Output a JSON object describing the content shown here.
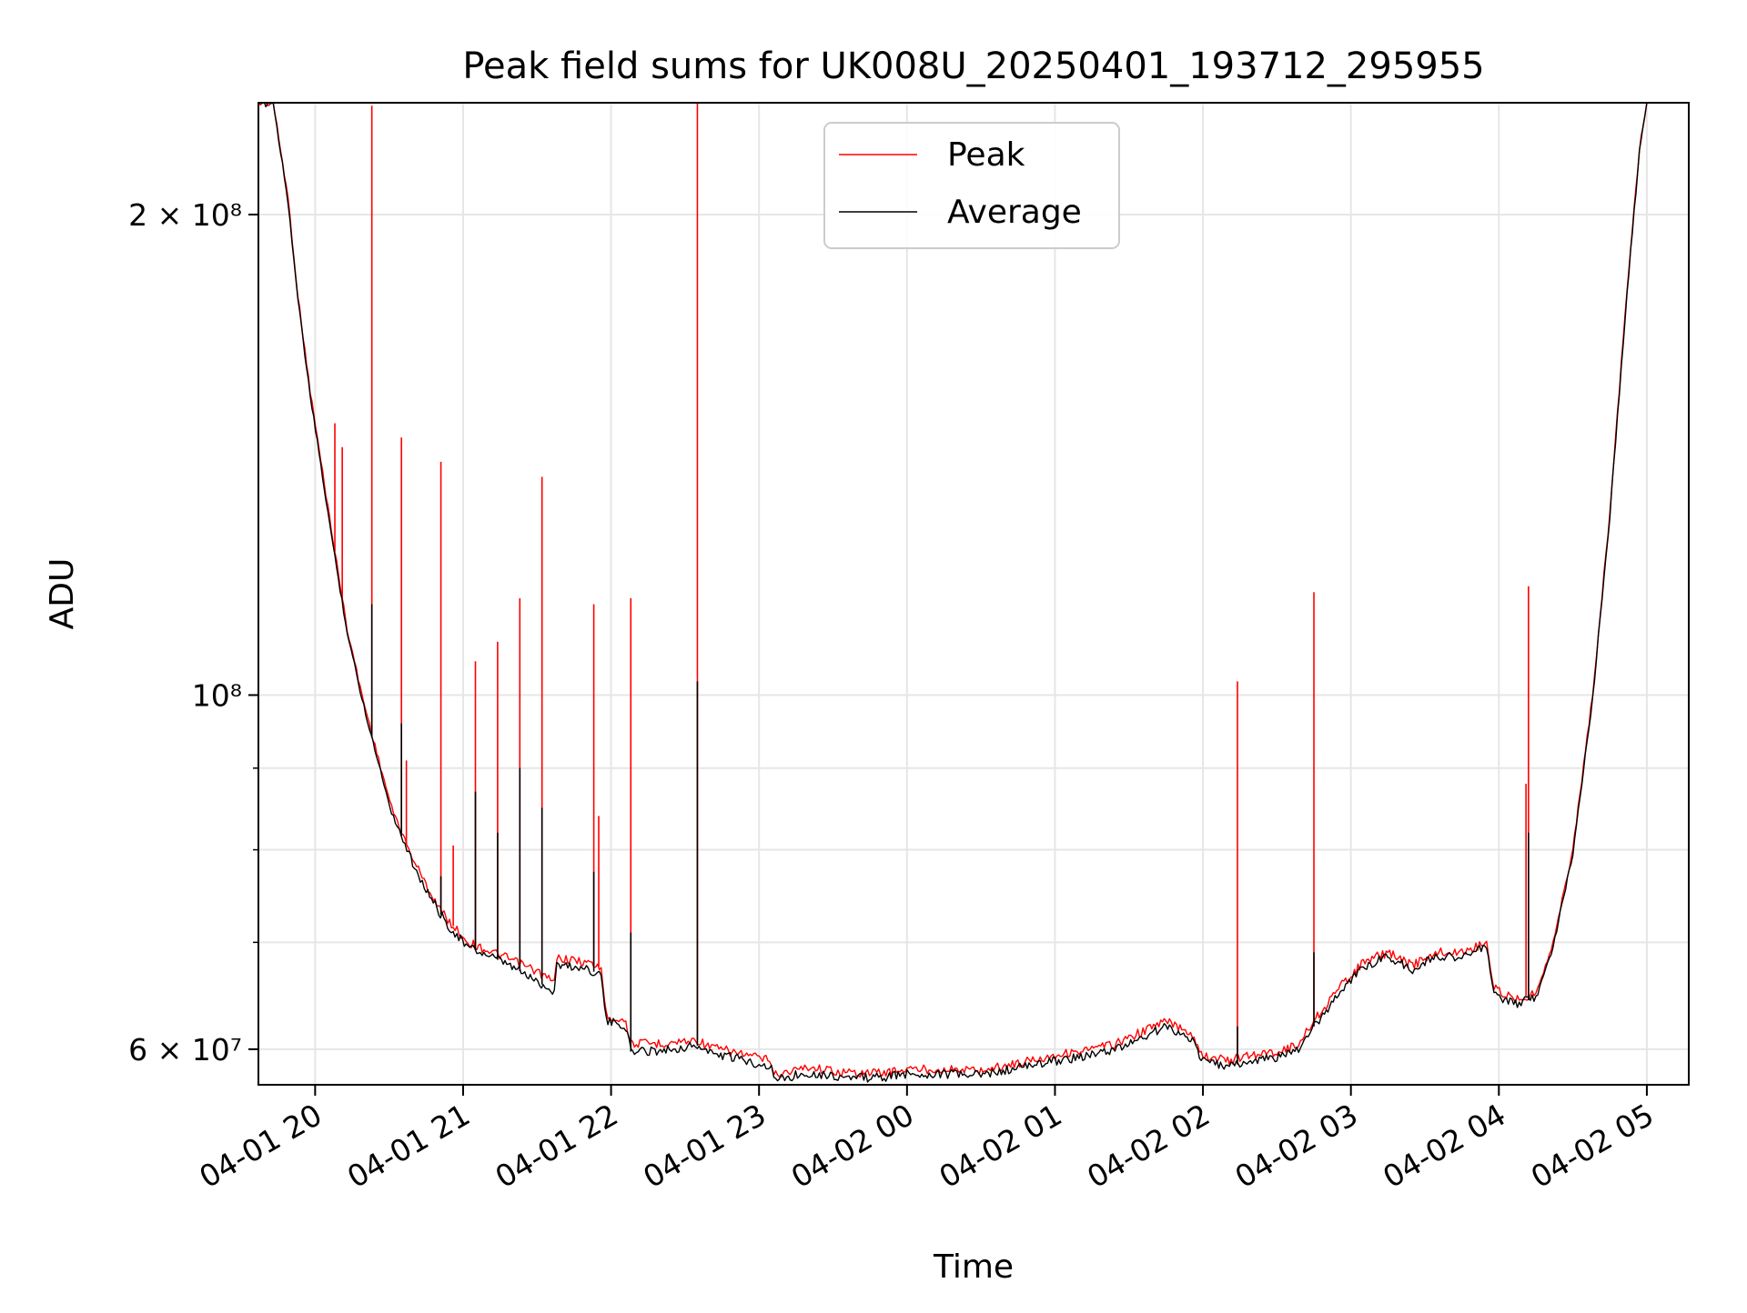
{
  "chart_data": {
    "type": "line",
    "title": "Peak field sums for UK008U_20250401_193712_295955",
    "xlabel": "Time",
    "ylabel": "ADU",
    "x_ticks": [
      "04-01 20",
      "04-01 21",
      "04-01 22",
      "04-01 23",
      "04-02 00",
      "04-02 01",
      "04-02 02",
      "04-02 03",
      "04-02 04",
      "04-02 05"
    ],
    "y_ticks": [
      {
        "value": 60000000,
        "label": "6 × 10⁷"
      },
      {
        "value": 100000000,
        "label": "10⁸"
      },
      {
        "value": 200000000,
        "label": "2 × 10⁸"
      }
    ],
    "y_scale": "log",
    "xlim": [
      "2025-04-01 19:37",
      "2025-04-02 05:17"
    ],
    "ylim": [
      57000000,
      235000000
    ],
    "grid": true,
    "legend_position": "upper center",
    "series": [
      {
        "name": "Peak",
        "color": "#ff0000",
        "baseline": [
          [
            "2025-04-01 19:37",
            235000000
          ],
          [
            "2025-04-01 19:43",
            235000000
          ],
          [
            "2025-04-01 19:49",
            205000000
          ],
          [
            "2025-04-01 19:53",
            178000000
          ],
          [
            "2025-04-01 19:58",
            155000000
          ],
          [
            "2025-04-01 20:03",
            138000000
          ],
          [
            "2025-04-01 20:08",
            123000000
          ],
          [
            "2025-04-01 20:13",
            110000000
          ],
          [
            "2025-04-01 20:19",
            100000000
          ],
          [
            "2025-04-01 20:25",
            92000000
          ],
          [
            "2025-04-01 20:31",
            85000000
          ],
          [
            "2025-04-01 20:38",
            80000000
          ],
          [
            "2025-04-01 20:45",
            76000000
          ],
          [
            "2025-04-01 20:53",
            72500000
          ],
          [
            "2025-04-01 21:02",
            70000000
          ],
          [
            "2025-04-01 21:12",
            69000000
          ],
          [
            "2025-04-01 21:22",
            68000000
          ],
          [
            "2025-04-01 21:31",
            67000000
          ],
          [
            "2025-04-01 21:37",
            66000000
          ],
          [
            "2025-04-01 21:38",
            68500000
          ],
          [
            "2025-04-01 21:50",
            68000000
          ],
          [
            "2025-04-01 21:56",
            67500000
          ],
          [
            "2025-04-01 21:58",
            63000000
          ],
          [
            "2025-04-01 22:06",
            62500000
          ],
          [
            "2025-04-01 22:08",
            60500000
          ],
          [
            "2025-04-01 22:20",
            60500000
          ],
          [
            "2025-04-01 22:35",
            60800000
          ],
          [
            "2025-04-01 22:40",
            60200000
          ],
          [
            "2025-04-01 22:55",
            59500000
          ],
          [
            "2025-04-01 23:05",
            59000000
          ],
          [
            "2025-04-01 23:06",
            57800000
          ],
          [
            "2025-04-01 23:20",
            58500000
          ],
          [
            "2025-04-01 23:35",
            58000000
          ],
          [
            "2025-04-01 23:50",
            58000000
          ],
          [
            "2025-04-02 00:00",
            58300000
          ],
          [
            "2025-04-02 00:15",
            58300000
          ],
          [
            "2025-04-02 00:30",
            58200000
          ],
          [
            "2025-04-02 00:45",
            58800000
          ],
          [
            "2025-04-02 01:00",
            59500000
          ],
          [
            "2025-04-02 01:15",
            60000000
          ],
          [
            "2025-04-02 01:25",
            60500000
          ],
          [
            "2025-04-02 01:35",
            61500000
          ],
          [
            "2025-04-02 01:45",
            62500000
          ],
          [
            "2025-04-02 01:55",
            61500000
          ],
          [
            "2025-04-02 02:00",
            59500000
          ],
          [
            "2025-04-02 02:10",
            59000000
          ],
          [
            "2025-04-02 02:20",
            59500000
          ],
          [
            "2025-04-02 02:30",
            59800000
          ],
          [
            "2025-04-02 02:38",
            60300000
          ],
          [
            "2025-04-02 02:45",
            62500000
          ],
          [
            "2025-04-02 02:55",
            65500000
          ],
          [
            "2025-04-02 03:05",
            68000000
          ],
          [
            "2025-04-02 03:15",
            69000000
          ],
          [
            "2025-04-02 03:25",
            67700000
          ],
          [
            "2025-04-02 03:35",
            69000000
          ],
          [
            "2025-04-02 03:45",
            69000000
          ],
          [
            "2025-04-02 03:55",
            70000000
          ],
          [
            "2025-04-02 03:58",
            65500000
          ],
          [
            "2025-04-02 04:06",
            64500000
          ],
          [
            "2025-04-02 04:15",
            65000000
          ],
          [
            "2025-04-02 04:22",
            70000000
          ],
          [
            "2025-04-02 04:30",
            80000000
          ],
          [
            "2025-04-02 04:38",
            100000000
          ],
          [
            "2025-04-02 04:45",
            130000000
          ],
          [
            "2025-04-02 04:52",
            180000000
          ],
          [
            "2025-04-02 04:57",
            220000000
          ],
          [
            "2025-04-02 05:00",
            235000000
          ]
        ],
        "spikes": [
          [
            "2025-04-01 20:08",
            148000000
          ],
          [
            "2025-04-01 20:11",
            143000000
          ],
          [
            "2025-04-01 20:23",
            234000000
          ],
          [
            "2025-04-01 20:35",
            145000000
          ],
          [
            "2025-04-01 20:37",
            91000000
          ],
          [
            "2025-04-01 20:51",
            140000000
          ],
          [
            "2025-04-01 20:56",
            80500000
          ],
          [
            "2025-04-01 21:05",
            105000000
          ],
          [
            "2025-04-01 21:14",
            108000000
          ],
          [
            "2025-04-01 21:23",
            115000000
          ],
          [
            "2025-04-01 21:32",
            137000000
          ],
          [
            "2025-04-01 21:53",
            114000000
          ],
          [
            "2025-04-01 21:55",
            84000000
          ],
          [
            "2025-04-01 22:08",
            115000000
          ],
          [
            "2025-04-01 22:35",
            235000000
          ],
          [
            "2025-04-02 02:14",
            102000000
          ],
          [
            "2025-04-02 02:45",
            116000000
          ],
          [
            "2025-04-02 04:11",
            88000000
          ],
          [
            "2025-04-02 04:12",
            117000000
          ]
        ]
      },
      {
        "name": "Average",
        "color": "#000000",
        "baseline": [
          [
            "2025-04-01 19:37",
            235000000
          ],
          [
            "2025-04-01 19:43",
            235000000
          ],
          [
            "2025-04-01 19:49",
            204000000
          ],
          [
            "2025-04-01 19:53",
            177000000
          ],
          [
            "2025-04-01 19:58",
            154000000
          ],
          [
            "2025-04-01 20:03",
            137000000
          ],
          [
            "2025-04-01 20:08",
            122000000
          ],
          [
            "2025-04-01 20:13",
            109500000
          ],
          [
            "2025-04-01 20:19",
            99500000
          ],
          [
            "2025-04-01 20:25",
            91500000
          ],
          [
            "2025-04-01 20:31",
            84500000
          ],
          [
            "2025-04-01 20:38",
            79500000
          ],
          [
            "2025-04-01 20:45",
            75500000
          ],
          [
            "2025-04-01 20:53",
            72000000
          ],
          [
            "2025-04-01 21:02",
            69500000
          ],
          [
            "2025-04-01 21:12",
            68500000
          ],
          [
            "2025-04-01 21:22",
            67300000
          ],
          [
            "2025-04-01 21:31",
            66000000
          ],
          [
            "2025-04-01 21:37",
            65200000
          ],
          [
            "2025-04-01 21:38",
            67800000
          ],
          [
            "2025-04-01 21:50",
            67400000
          ],
          [
            "2025-04-01 21:56",
            66800000
          ],
          [
            "2025-04-01 21:58",
            62500000
          ],
          [
            "2025-04-01 22:06",
            62000000
          ],
          [
            "2025-04-01 22:08",
            59800000
          ],
          [
            "2025-04-01 22:20",
            59900000
          ],
          [
            "2025-04-01 22:35",
            60300000
          ],
          [
            "2025-04-01 22:40",
            59700000
          ],
          [
            "2025-04-01 22:55",
            59000000
          ],
          [
            "2025-04-01 23:05",
            58500000
          ],
          [
            "2025-04-01 23:06",
            57400000
          ],
          [
            "2025-04-01 23:20",
            58000000
          ],
          [
            "2025-04-01 23:35",
            57600000
          ],
          [
            "2025-04-01 23:50",
            57600000
          ],
          [
            "2025-04-02 00:00",
            57900000
          ],
          [
            "2025-04-02 00:15",
            57900000
          ],
          [
            "2025-04-02 00:30",
            57800000
          ],
          [
            "2025-04-02 00:45",
            58400000
          ],
          [
            "2025-04-02 01:00",
            59000000
          ],
          [
            "2025-04-02 01:15",
            59500000
          ],
          [
            "2025-04-02 01:25",
            60000000
          ],
          [
            "2025-04-02 01:35",
            61000000
          ],
          [
            "2025-04-02 01:45",
            62000000
          ],
          [
            "2025-04-02 01:55",
            61000000
          ],
          [
            "2025-04-02 02:00",
            59000000
          ],
          [
            "2025-04-02 02:10",
            58500000
          ],
          [
            "2025-04-02 02:20",
            59000000
          ],
          [
            "2025-04-02 02:30",
            59300000
          ],
          [
            "2025-04-02 02:38",
            59800000
          ],
          [
            "2025-04-02 02:45",
            62000000
          ],
          [
            "2025-04-02 02:55",
            65000000
          ],
          [
            "2025-04-02 03:05",
            67600000
          ],
          [
            "2025-04-02 03:15",
            68600000
          ],
          [
            "2025-04-02 03:25",
            67300000
          ],
          [
            "2025-04-02 03:35",
            68600000
          ],
          [
            "2025-04-02 03:45",
            68600000
          ],
          [
            "2025-04-02 03:55",
            69500000
          ],
          [
            "2025-04-02 03:58",
            65000000
          ],
          [
            "2025-04-02 04:06",
            64000000
          ],
          [
            "2025-04-02 04:15",
            64600000
          ],
          [
            "2025-04-02 04:22",
            69600000
          ],
          [
            "2025-04-02 04:30",
            79500000
          ],
          [
            "2025-04-02 04:38",
            99500000
          ],
          [
            "2025-04-02 04:45",
            129500000
          ],
          [
            "2025-04-02 04:52",
            179000000
          ],
          [
            "2025-04-02 04:57",
            219000000
          ],
          [
            "2025-04-02 05:00",
            235000000
          ]
        ],
        "spikes": [
          [
            "2025-04-01 20:23",
            114000000
          ],
          [
            "2025-04-01 20:35",
            96000000
          ],
          [
            "2025-04-01 20:51",
            77000000
          ],
          [
            "2025-04-01 21:05",
            87000000
          ],
          [
            "2025-04-01 21:14",
            82000000
          ],
          [
            "2025-04-01 21:23",
            90000000
          ],
          [
            "2025-04-01 21:32",
            85000000
          ],
          [
            "2025-04-01 21:53",
            77500000
          ],
          [
            "2025-04-01 22:08",
            71000000
          ],
          [
            "2025-04-01 22:35",
            102000000
          ],
          [
            "2025-04-02 02:14",
            62000000
          ],
          [
            "2025-04-02 02:45",
            69000000
          ],
          [
            "2025-04-02 04:12",
            82000000
          ]
        ]
      }
    ]
  }
}
